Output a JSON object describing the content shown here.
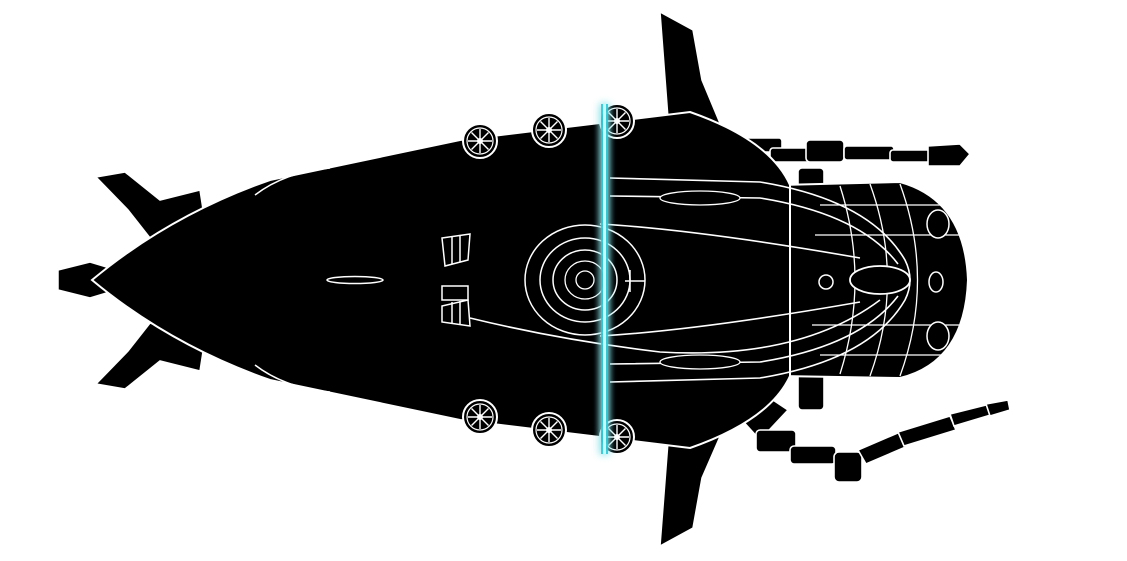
{
  "colors": {
    "background": "#ffffff",
    "hull": "#000000",
    "outline": "#ffffff",
    "scan_line": "#3ff2ff",
    "scan_glow": "#00c8d8"
  },
  "scan_line": {
    "label": ""
  },
  "thrusters": {
    "count": 6
  }
}
